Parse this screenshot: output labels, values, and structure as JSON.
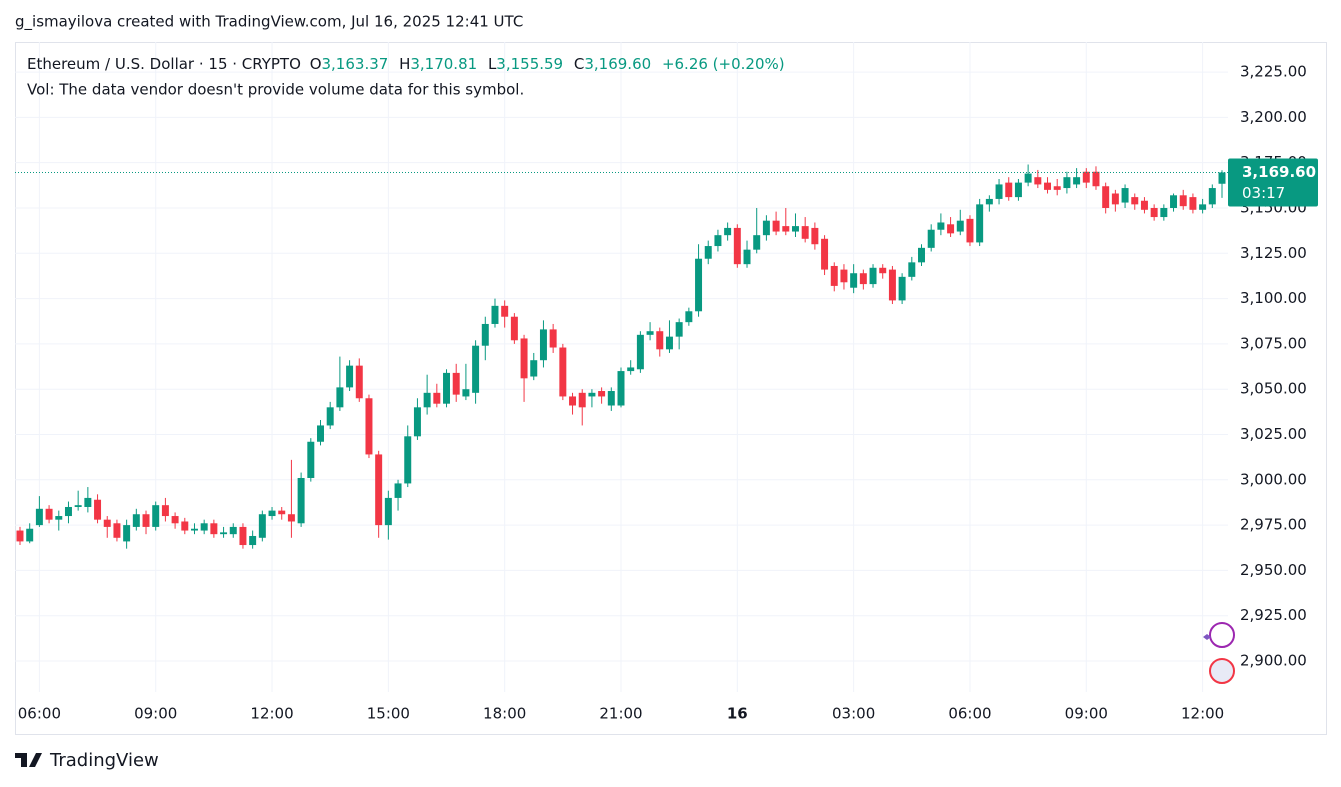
{
  "page": {
    "caption": "g_ismayilova created with TradingView.com, Jul 16, 2025 12:41 UTC",
    "brand": "TradingView"
  },
  "legend": {
    "symbol": "Ethereum / U.S. Dollar · 15 · CRYPTO",
    "ohlc": [
      {
        "label": "O",
        "value": "3,163.37"
      },
      {
        "label": "H",
        "value": "3,170.81"
      },
      {
        "label": "L",
        "value": "3,155.59"
      },
      {
        "label": "C",
        "value": "3,169.60"
      }
    ],
    "change": "+6.26 (+0.20%)",
    "volume_note": "Vol: The data vendor doesn't provide volume data for this symbol."
  },
  "price_tag": {
    "price": "3,169.60",
    "countdown": "03:17"
  },
  "chart_data": {
    "type": "candlestick",
    "up_color": "#089981",
    "down_color": "#f23645",
    "grid": true,
    "categories": [
      null,
      null,
      "06:00",
      null,
      null,
      null,
      null,
      null,
      null,
      null,
      null,
      null,
      null,
      null,
      "09:00",
      null,
      null,
      null,
      null,
      null,
      null,
      null,
      null,
      null,
      null,
      null,
      "12:00",
      null,
      null,
      null,
      null,
      null,
      null,
      null,
      null,
      null,
      null,
      null,
      "15:00",
      null,
      null,
      null,
      null,
      null,
      null,
      null,
      null,
      null,
      null,
      null,
      "18:00",
      null,
      null,
      null,
      null,
      null,
      null,
      null,
      null,
      null,
      null,
      null,
      "21:00",
      null,
      null,
      null,
      null,
      null,
      null,
      null,
      null,
      null,
      null,
      null,
      "16",
      null,
      null,
      null,
      null,
      null,
      null,
      null,
      null,
      null,
      null,
      null,
      "03:00",
      null,
      null,
      null,
      null,
      null,
      null,
      null,
      null,
      null,
      null,
      null,
      "06:00",
      null,
      null,
      null,
      null,
      null,
      null,
      null,
      null,
      null,
      null,
      null,
      "09:00",
      null,
      null,
      null,
      null,
      null,
      null,
      null,
      null,
      null,
      null,
      null,
      "12:00",
      null,
      null
    ],
    "open": [
      2972,
      2966,
      2975,
      2984,
      2978,
      2980,
      2985,
      2985,
      2989,
      2978,
      2976,
      2966,
      2974,
      2981,
      2974,
      2986,
      2980,
      2977,
      2972,
      2972,
      2976,
      2970,
      2970,
      2974,
      2964,
      2968,
      2980,
      2983,
      2981,
      2976,
      3001,
      3021,
      3030,
      3040,
      3051,
      3063,
      3045,
      3014,
      2975,
      2990,
      2998,
      3024,
      3040,
      3048,
      3042,
      3059,
      3046,
      3048,
      3074,
      3086,
      3096,
      3090,
      3078,
      3057,
      3066,
      3083,
      3073,
      3046,
      3048,
      3046,
      3049,
      3041,
      3041,
      3060,
      3061,
      3080,
      3082,
      3072,
      3079,
      3087,
      3093,
      3122,
      3129,
      3135,
      3139,
      3119,
      3127,
      3135,
      3143,
      3140,
      3137,
      3140,
      3139,
      3133,
      3118,
      3116,
      3106,
      3114,
      3108,
      3117,
      3116,
      3099,
      3112,
      3120,
      3128,
      3138,
      3141,
      3137,
      3144,
      3131,
      3152,
      3155,
      3164,
      3156,
      3164,
      3167,
      3164,
      3162,
      3161,
      3163,
      3170,
      3170,
      3162,
      3158,
      3153,
      3156,
      3154,
      3150,
      3145,
      3150,
      3157,
      3156,
      3149,
      3152,
      3163.37
    ],
    "high": [
      2974,
      2976,
      2991,
      2986,
      2983,
      2988,
      2994,
      2996,
      2992,
      2980,
      2978,
      2978,
      2984,
      2983,
      2988,
      2990,
      2982,
      2979,
      2976,
      2978,
      2978,
      2974,
      2976,
      2976,
      2972,
      2983,
      2985,
      2985,
      3011,
      3004,
      3023,
      3033,
      3043,
      3068,
      3066,
      3067,
      3047,
      3016,
      2994,
      3000,
      3030,
      3045,
      3058,
      3053,
      3061,
      3064,
      3064,
      3077,
      3090,
      3100,
      3099,
      3092,
      3080,
      3070,
      3088,
      3086,
      3075,
      3048,
      3050,
      3050,
      3051,
      3051,
      3062,
      3066,
      3082,
      3087,
      3084,
      3088,
      3089,
      3095,
      3130,
      3132,
      3138,
      3142,
      3141,
      3132,
      3150,
      3146,
      3148,
      3150,
      3147,
      3145,
      3142,
      3135,
      3120,
      3119,
      3119,
      3116,
      3119,
      3119,
      3118,
      3114,
      3123,
      3130,
      3141,
      3147,
      3145,
      3149,
      3146,
      3155,
      3157,
      3166,
      3167,
      3166,
      3174,
      3171,
      3167,
      3166,
      3170,
      3172,
      3172,
      3173,
      3164,
      3160,
      3163,
      3158,
      3156,
      3152,
      3152,
      3158,
      3160,
      3158,
      3155,
      3163,
      3170.81
    ],
    "low": [
      2964,
      2965,
      2974,
      2976,
      2972,
      2976,
      2983,
      2982,
      2976,
      2968,
      2966,
      2962,
      2972,
      2970,
      2972,
      2977,
      2973,
      2970,
      2970,
      2970,
      2968,
      2968,
      2968,
      2962,
      2962,
      2966,
      2978,
      2978,
      2968,
      2974,
      2999,
      3019,
      3028,
      3038,
      3049,
      3043,
      3012,
      2968,
      2967,
      2983,
      2996,
      3022,
      3036,
      3040,
      3040,
      3043,
      3044,
      3042,
      3066,
      3084,
      3084,
      3075,
      3043,
      3055,
      3062,
      3070,
      3044,
      3036,
      3030,
      3040,
      3042,
      3038,
      3040,
      3058,
      3059,
      3077,
      3068,
      3070,
      3072,
      3085,
      3090,
      3119,
      3126,
      3132,
      3117,
      3117,
      3125,
      3132,
      3135,
      3135,
      3134,
      3131,
      3127,
      3113,
      3104,
      3105,
      3103,
      3105,
      3106,
      3111,
      3097,
      3097,
      3110,
      3118,
      3126,
      3135,
      3134,
      3135,
      3129,
      3129,
      3148,
      3152,
      3154,
      3154,
      3162,
      3161,
      3158,
      3157,
      3158,
      3161,
      3161,
      3160,
      3147,
      3148,
      3150,
      3149,
      3147,
      3143,
      3143,
      3148,
      3149,
      3147,
      3147,
      3150,
      3155.59
    ],
    "close": [
      2966,
      2973,
      2984,
      2978,
      2980,
      2985,
      2986,
      2990,
      2978,
      2974,
      2968,
      2975,
      2981,
      2974,
      2986,
      2980,
      2976,
      2972,
      2973,
      2976,
      2970,
      2971,
      2974,
      2964,
      2969,
      2981,
      2983,
      2981,
      2977,
      3001,
      3021,
      3030,
      3040,
      3051,
      3063,
      3045,
      3014,
      2975,
      2990,
      2998,
      3024,
      3040,
      3048,
      3042,
      3059,
      3047,
      3050,
      3074,
      3086,
      3096,
      3090,
      3077,
      3056,
      3066,
      3083,
      3073,
      3046,
      3041,
      3040,
      3048,
      3046,
      3049,
      3060,
      3062,
      3080,
      3082,
      3072,
      3079,
      3087,
      3093,
      3122,
      3129,
      3135,
      3139,
      3119,
      3127,
      3135,
      3143,
      3137,
      3137,
      3140,
      3133,
      3130,
      3116,
      3107,
      3109,
      3114,
      3108,
      3117,
      3114,
      3099,
      3112,
      3120,
      3128,
      3138,
      3142,
      3136,
      3143,
      3131,
      3152,
      3155,
      3163,
      3156,
      3164,
      3169,
      3163,
      3160,
      3160,
      3167,
      3167,
      3164,
      3162,
      3150,
      3152,
      3161,
      3152,
      3149,
      3145,
      3150,
      3157,
      3151,
      3149,
      3152,
      3161,
      3169.6
    ],
    "ylim": [
      2882.9,
      3241.6
    ],
    "yticks": [
      {
        "value": 2900,
        "label": "2,900.00"
      },
      {
        "value": 2925,
        "label": "2,925.00"
      },
      {
        "value": 2950,
        "label": "2,950.00"
      },
      {
        "value": 2975,
        "label": "2,975.00"
      },
      {
        "value": 3000,
        "label": "3,000.00"
      },
      {
        "value": 3025,
        "label": "3,025.00"
      },
      {
        "value": 3050,
        "label": "3,050.00"
      },
      {
        "value": 3075,
        "label": "3,075.00"
      },
      {
        "value": 3100,
        "label": "3,100.00"
      },
      {
        "value": 3125,
        "label": "3,125.00"
      },
      {
        "value": 3150,
        "label": "3,150.00"
      },
      {
        "value": 3175,
        "label": "3,175.00"
      },
      {
        "value": 3200,
        "label": "3,200.00"
      },
      {
        "value": 3225,
        "label": "3,225.00"
      }
    ]
  }
}
